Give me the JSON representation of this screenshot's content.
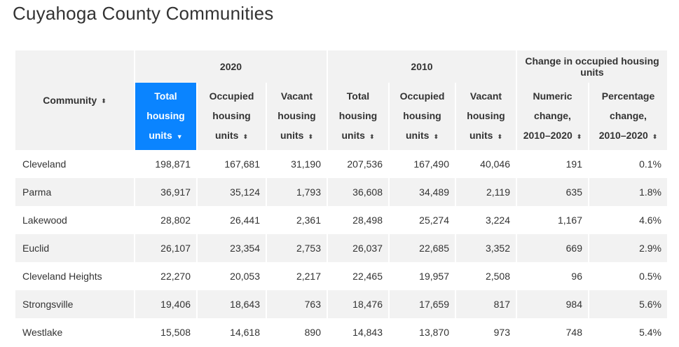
{
  "title": "Cuyahoga County Communities",
  "header": {
    "community": "Community",
    "group_2020": "2020",
    "group_2010": "2010",
    "group_change": "Change in occupied housing units",
    "cols": [
      {
        "line1": "Total",
        "line2": "housing",
        "line3": "units"
      },
      {
        "line1": "Occupied",
        "line2": "housing",
        "line3": "units"
      },
      {
        "line1": "Vacant",
        "line2": "housing",
        "line3": "units"
      },
      {
        "line1": "Total",
        "line2": "housing",
        "line3": "units"
      },
      {
        "line1": "Occupied",
        "line2": "housing",
        "line3": "units"
      },
      {
        "line1": "Vacant",
        "line2": "housing",
        "line3": "units"
      },
      {
        "line1": "Numeric",
        "line2": "change,",
        "line3": "2010–2020"
      },
      {
        "line1": "Percentage",
        "line2": "change,",
        "line3": "2010–2020"
      }
    ],
    "sort_icon": "⬍",
    "sort_desc_icon": "▼"
  },
  "rows": [
    {
      "community": "Cleveland",
      "v": [
        "198,871",
        "167,681",
        "31,190",
        "207,536",
        "167,490",
        "40,046",
        "191",
        "0.1%"
      ]
    },
    {
      "community": "Parma",
      "v": [
        "36,917",
        "35,124",
        "1,793",
        "36,608",
        "34,489",
        "2,119",
        "635",
        "1.8%"
      ]
    },
    {
      "community": "Lakewood",
      "v": [
        "28,802",
        "26,441",
        "2,361",
        "28,498",
        "25,274",
        "3,224",
        "1,167",
        "4.6%"
      ]
    },
    {
      "community": "Euclid",
      "v": [
        "26,107",
        "23,354",
        "2,753",
        "26,037",
        "22,685",
        "3,352",
        "669",
        "2.9%"
      ]
    },
    {
      "community": "Cleveland Heights",
      "v": [
        "22,270",
        "20,053",
        "2,217",
        "22,465",
        "19,957",
        "2,508",
        "96",
        "0.5%"
      ]
    },
    {
      "community": "Strongsville",
      "v": [
        "19,406",
        "18,643",
        "763",
        "18,476",
        "17,659",
        "817",
        "984",
        "5.6%"
      ]
    },
    {
      "community": "Westlake",
      "v": [
        "15,508",
        "14,618",
        "890",
        "14,843",
        "13,870",
        "973",
        "748",
        "5.4%"
      ]
    }
  ],
  "colors": {
    "accent": "#0a84ff",
    "header_bg": "#f2f2f2",
    "stripe_bg": "#f2f2f2"
  }
}
